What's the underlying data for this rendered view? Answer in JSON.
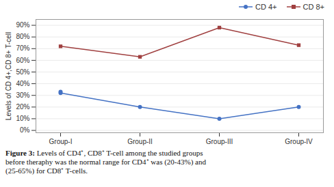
{
  "chart_data": {
    "type": "line",
    "categories": [
      "Group-I",
      "Group-II",
      "Group-III",
      "Group-IV"
    ],
    "series": [
      {
        "name": "CD 4+",
        "color": "#4472c4",
        "values": [
          32,
          20,
          10,
          20
        ],
        "marker": "circle",
        "line_style": "solid"
      },
      {
        "name": "CD 8+",
        "color": "#a04040",
        "values": [
          72,
          63,
          88,
          73
        ],
        "marker": "square",
        "line_style": "solid"
      },
      {
        "color": "#4472c4",
        "values": [
          33,
          null,
          null,
          null
        ],
        "type": "scatter",
        "marker": "circle"
      }
    ],
    "ylabel": "Levels of CD 4+,CD 8+ T-cell",
    "ylim": [
      -2,
      95
    ],
    "yticks": [
      {
        "value": 0,
        "label": "0%"
      },
      {
        "value": 10,
        "label": "10%"
      },
      {
        "value": 20,
        "label": "20%"
      },
      {
        "value": 30,
        "label": "30%"
      },
      {
        "value": 40,
        "label": "40%"
      },
      {
        "value": 50,
        "label": "50%"
      },
      {
        "value": 60,
        "label": "60%"
      },
      {
        "value": 70,
        "label": "70%"
      },
      {
        "value": 80,
        "label": "80%"
      },
      {
        "value": 90,
        "label": "90%"
      }
    ],
    "grid": true,
    "legend": "upper right",
    "caption_bold": "Figure 3:",
    "caption": " Levels of CD4⁺, CD8⁺ T-cell among the studied groups\nbefore theraphy was the normal range for CD4⁺ was (20-43%) and\n(25-65%) for CD8⁺ T-cells."
  }
}
